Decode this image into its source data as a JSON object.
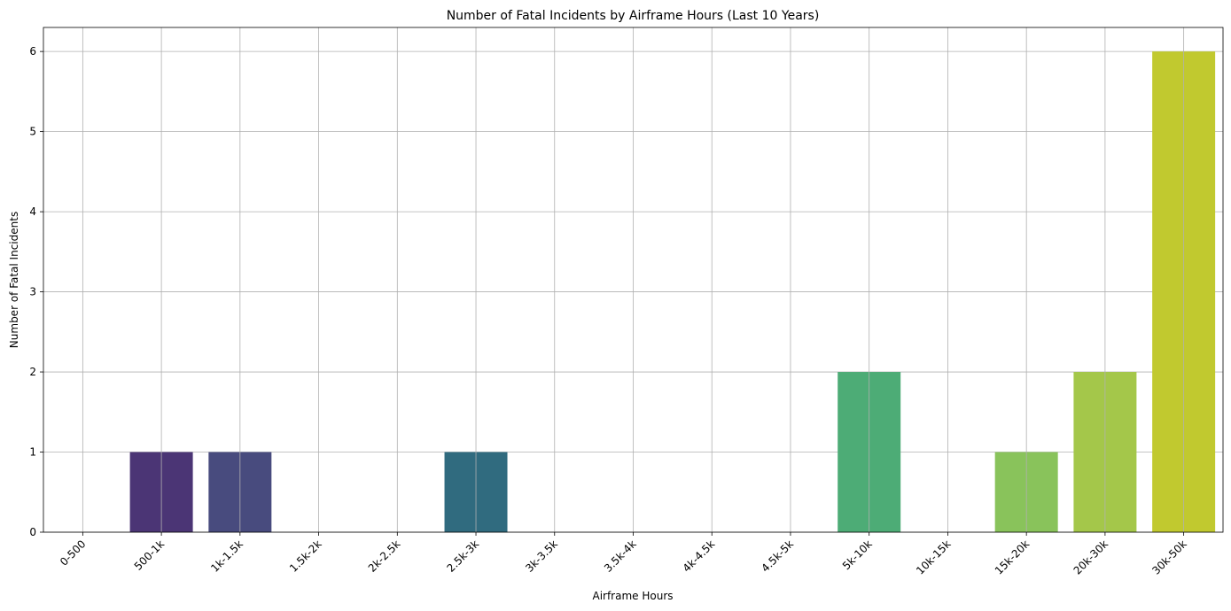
{
  "chart_data": {
    "type": "bar",
    "title": "Number of Fatal Incidents by Airframe Hours (Last 10 Years)",
    "xlabel": "Airframe Hours",
    "ylabel": "Number of Fatal Incidents",
    "categories": [
      "0-500",
      "500-1k",
      "1k-1.5k",
      "1.5k-2k",
      "2k-2.5k",
      "2.5k-3k",
      "3k-3.5k",
      "3.5k-4k",
      "4k-4.5k",
      "4.5k-5k",
      "5k-10k",
      "10k-15k",
      "15k-20k",
      "20k-30k",
      "30k-50k"
    ],
    "values": [
      0,
      1,
      1,
      0,
      0,
      1,
      0,
      0,
      0,
      0,
      2,
      0,
      1,
      2,
      6
    ],
    "colors": [
      "#471164",
      "#4b3575",
      "#484b7e",
      "#3f5e86",
      "#367088",
      "#306b7f",
      "#2f8a8c",
      "#26978b",
      "#21a585",
      "#2db27d",
      "#4dac76",
      "#6fcc5b",
      "#89c35b",
      "#a4c74a",
      "#c1c92f"
    ],
    "ylim": [
      0,
      6.3
    ],
    "yticks": [
      0,
      1,
      2,
      3,
      4,
      5,
      6
    ],
    "xtick_rotation": 45,
    "grid": true,
    "grid_color": "#b0b0b0",
    "legend": "none"
  }
}
